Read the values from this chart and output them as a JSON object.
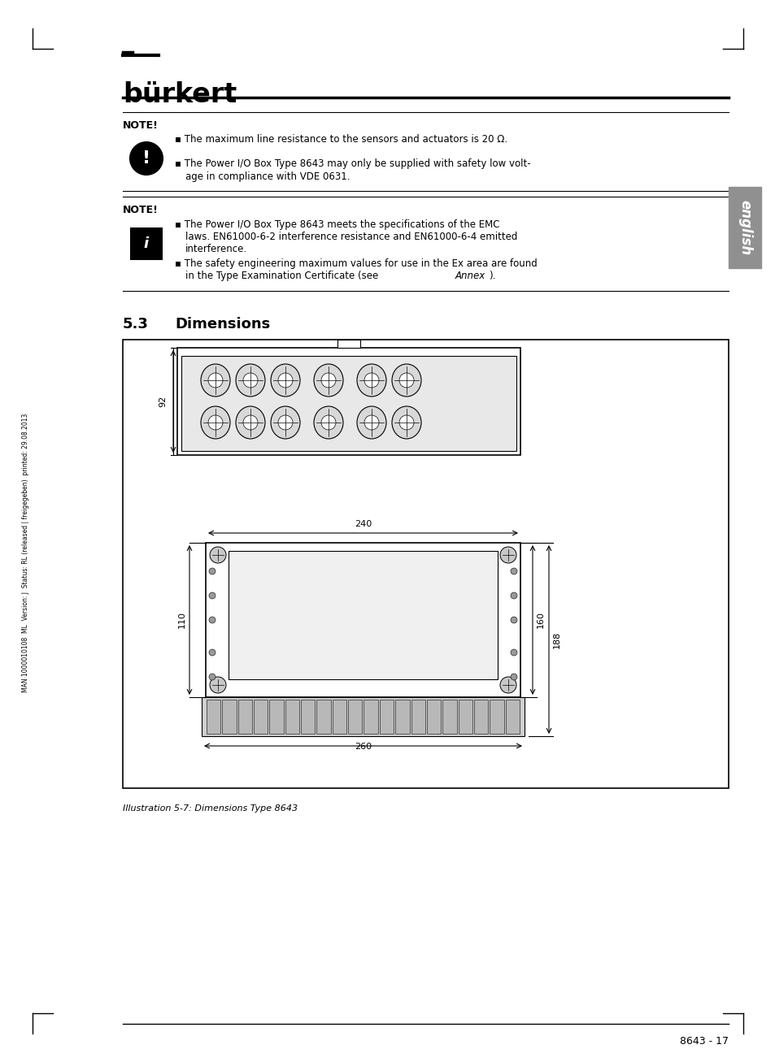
{
  "page_bg": "#ffffff",
  "logo_text": "bürkert",
  "note1_label": "NOTE!",
  "note1_bullet1": "▪ The maximum line resistance to the sensors and actuators is 20 Ω.",
  "note1_bullet2a": "▪ The Power I/O Box Type 8643 may only be supplied with safety low volt-",
  "note1_bullet2b": "age in compliance with VDE 0631.",
  "note2_label": "NOTE!",
  "note2_bullet1a": "▪ The Power I/O Box Type 8643 meets the specifications of the EMC",
  "note2_bullet1b": "laws. EN61000-6-2 interference resistance and EN61000-6-4 emitted",
  "note2_bullet1c": "interference.",
  "note2_bullet2a": "▪ The safety engineering maximum values for use in the Ex area are found",
  "note2_bullet2b": "in the Type Examination Certificate (see Annex).",
  "section_num": "5.3",
  "section_title": "Dimensions",
  "illustration_caption": "Illustration 5-7: Dimensions Type 8643",
  "side_label_text": "english",
  "footer_text": "8643 - 17",
  "left_margin_text": "MAN 1000010108  ML  Version: J  Status: RL (released | freigegeben)  printed: 29.08.2013",
  "dim_92": "92",
  "dim_110": "110",
  "dim_240": "240",
  "dim_260": "260",
  "dim_160": "160",
  "dim_188": "188"
}
